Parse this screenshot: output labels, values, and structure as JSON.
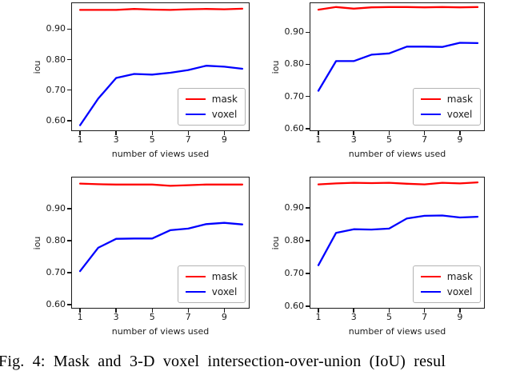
{
  "figure": {
    "caption": "Fig. 4: Mask and 3-D voxel intersection-over-union (IoU) resul"
  },
  "colors": {
    "mask": "#ff0000",
    "voxel": "#0000ff",
    "spine": "#1a1a1a",
    "text": "#1a1a1a"
  },
  "chart_data": [
    {
      "id": "top-left",
      "type": "line",
      "x": [
        1,
        2,
        3,
        4,
        5,
        6,
        7,
        8,
        9,
        10
      ],
      "series": [
        {
          "name": "mask",
          "color": "#ff0000",
          "values": [
            0.963,
            0.963,
            0.963,
            0.966,
            0.964,
            0.963,
            0.965,
            0.966,
            0.965,
            0.967
          ]
        },
        {
          "name": "voxel",
          "color": "#0000ff",
          "values": [
            0.585,
            0.672,
            0.74,
            0.753,
            0.751,
            0.757,
            0.766,
            0.78,
            0.777,
            0.77
          ]
        }
      ],
      "xlabel": "number of views used",
      "ylabel": "iou",
      "xticks": [
        1,
        3,
        5,
        7,
        9
      ],
      "yticks": [
        0.6,
        0.7,
        0.8,
        0.9
      ],
      "xlim": [
        0.55,
        10.45
      ],
      "ylim": [
        0.563,
        0.985
      ],
      "grid": false,
      "legend": {
        "position": "lower right",
        "entries": [
          "mask",
          "voxel"
        ]
      }
    },
    {
      "id": "top-right",
      "type": "line",
      "x": [
        1,
        2,
        3,
        4,
        5,
        6,
        7,
        8,
        9,
        10
      ],
      "series": [
        {
          "name": "mask",
          "color": "#ff0000",
          "values": [
            0.97,
            0.978,
            0.973,
            0.977,
            0.978,
            0.978,
            0.977,
            0.978,
            0.977,
            0.978
          ]
        },
        {
          "name": "voxel",
          "color": "#0000ff",
          "values": [
            0.718,
            0.81,
            0.81,
            0.83,
            0.834,
            0.855,
            0.855,
            0.854,
            0.867,
            0.866
          ]
        }
      ],
      "xlabel": "number of views used",
      "ylabel": "iou",
      "xticks": [
        1,
        3,
        5,
        7,
        9
      ],
      "yticks": [
        0.6,
        0.7,
        0.8,
        0.9
      ],
      "xlim": [
        0.55,
        10.45
      ],
      "ylim": [
        0.59,
        0.99
      ],
      "grid": false,
      "legend": {
        "position": "lower right",
        "entries": [
          "mask",
          "voxel"
        ]
      }
    },
    {
      "id": "bottom-left",
      "type": "line",
      "x": [
        1,
        2,
        3,
        4,
        5,
        6,
        7,
        8,
        9,
        10
      ],
      "series": [
        {
          "name": "mask",
          "color": "#ff0000",
          "values": [
            0.979,
            0.977,
            0.976,
            0.976,
            0.976,
            0.972,
            0.974,
            0.976,
            0.976,
            0.976
          ]
        },
        {
          "name": "voxel",
          "color": "#0000ff",
          "values": [
            0.705,
            0.778,
            0.806,
            0.807,
            0.807,
            0.833,
            0.838,
            0.852,
            0.856,
            0.851
          ]
        }
      ],
      "xlabel": "number of views used",
      "ylabel": "iou",
      "xticks": [
        1,
        3,
        5,
        7,
        9
      ],
      "yticks": [
        0.6,
        0.7,
        0.8,
        0.9
      ],
      "xlim": [
        0.55,
        10.45
      ],
      "ylim": [
        0.585,
        0.998
      ],
      "grid": false,
      "legend": {
        "position": "lower right",
        "entries": [
          "mask",
          "voxel"
        ]
      }
    },
    {
      "id": "bottom-right",
      "type": "line",
      "x": [
        1,
        2,
        3,
        4,
        5,
        6,
        7,
        8,
        9,
        10
      ],
      "series": [
        {
          "name": "mask",
          "color": "#ff0000",
          "values": [
            0.972,
            0.975,
            0.977,
            0.976,
            0.977,
            0.974,
            0.972,
            0.977,
            0.975,
            0.978
          ]
        },
        {
          "name": "voxel",
          "color": "#0000ff",
          "values": [
            0.725,
            0.824,
            0.835,
            0.834,
            0.837,
            0.868,
            0.876,
            0.877,
            0.871,
            0.873
          ]
        }
      ],
      "xlabel": "number of views used",
      "ylabel": "iou",
      "xticks": [
        1,
        3,
        5,
        7,
        9
      ],
      "yticks": [
        0.6,
        0.7,
        0.8,
        0.9
      ],
      "xlim": [
        0.55,
        10.45
      ],
      "ylim": [
        0.59,
        0.993
      ],
      "grid": false,
      "legend": {
        "position": "lower right",
        "entries": [
          "mask",
          "voxel"
        ]
      }
    }
  ]
}
